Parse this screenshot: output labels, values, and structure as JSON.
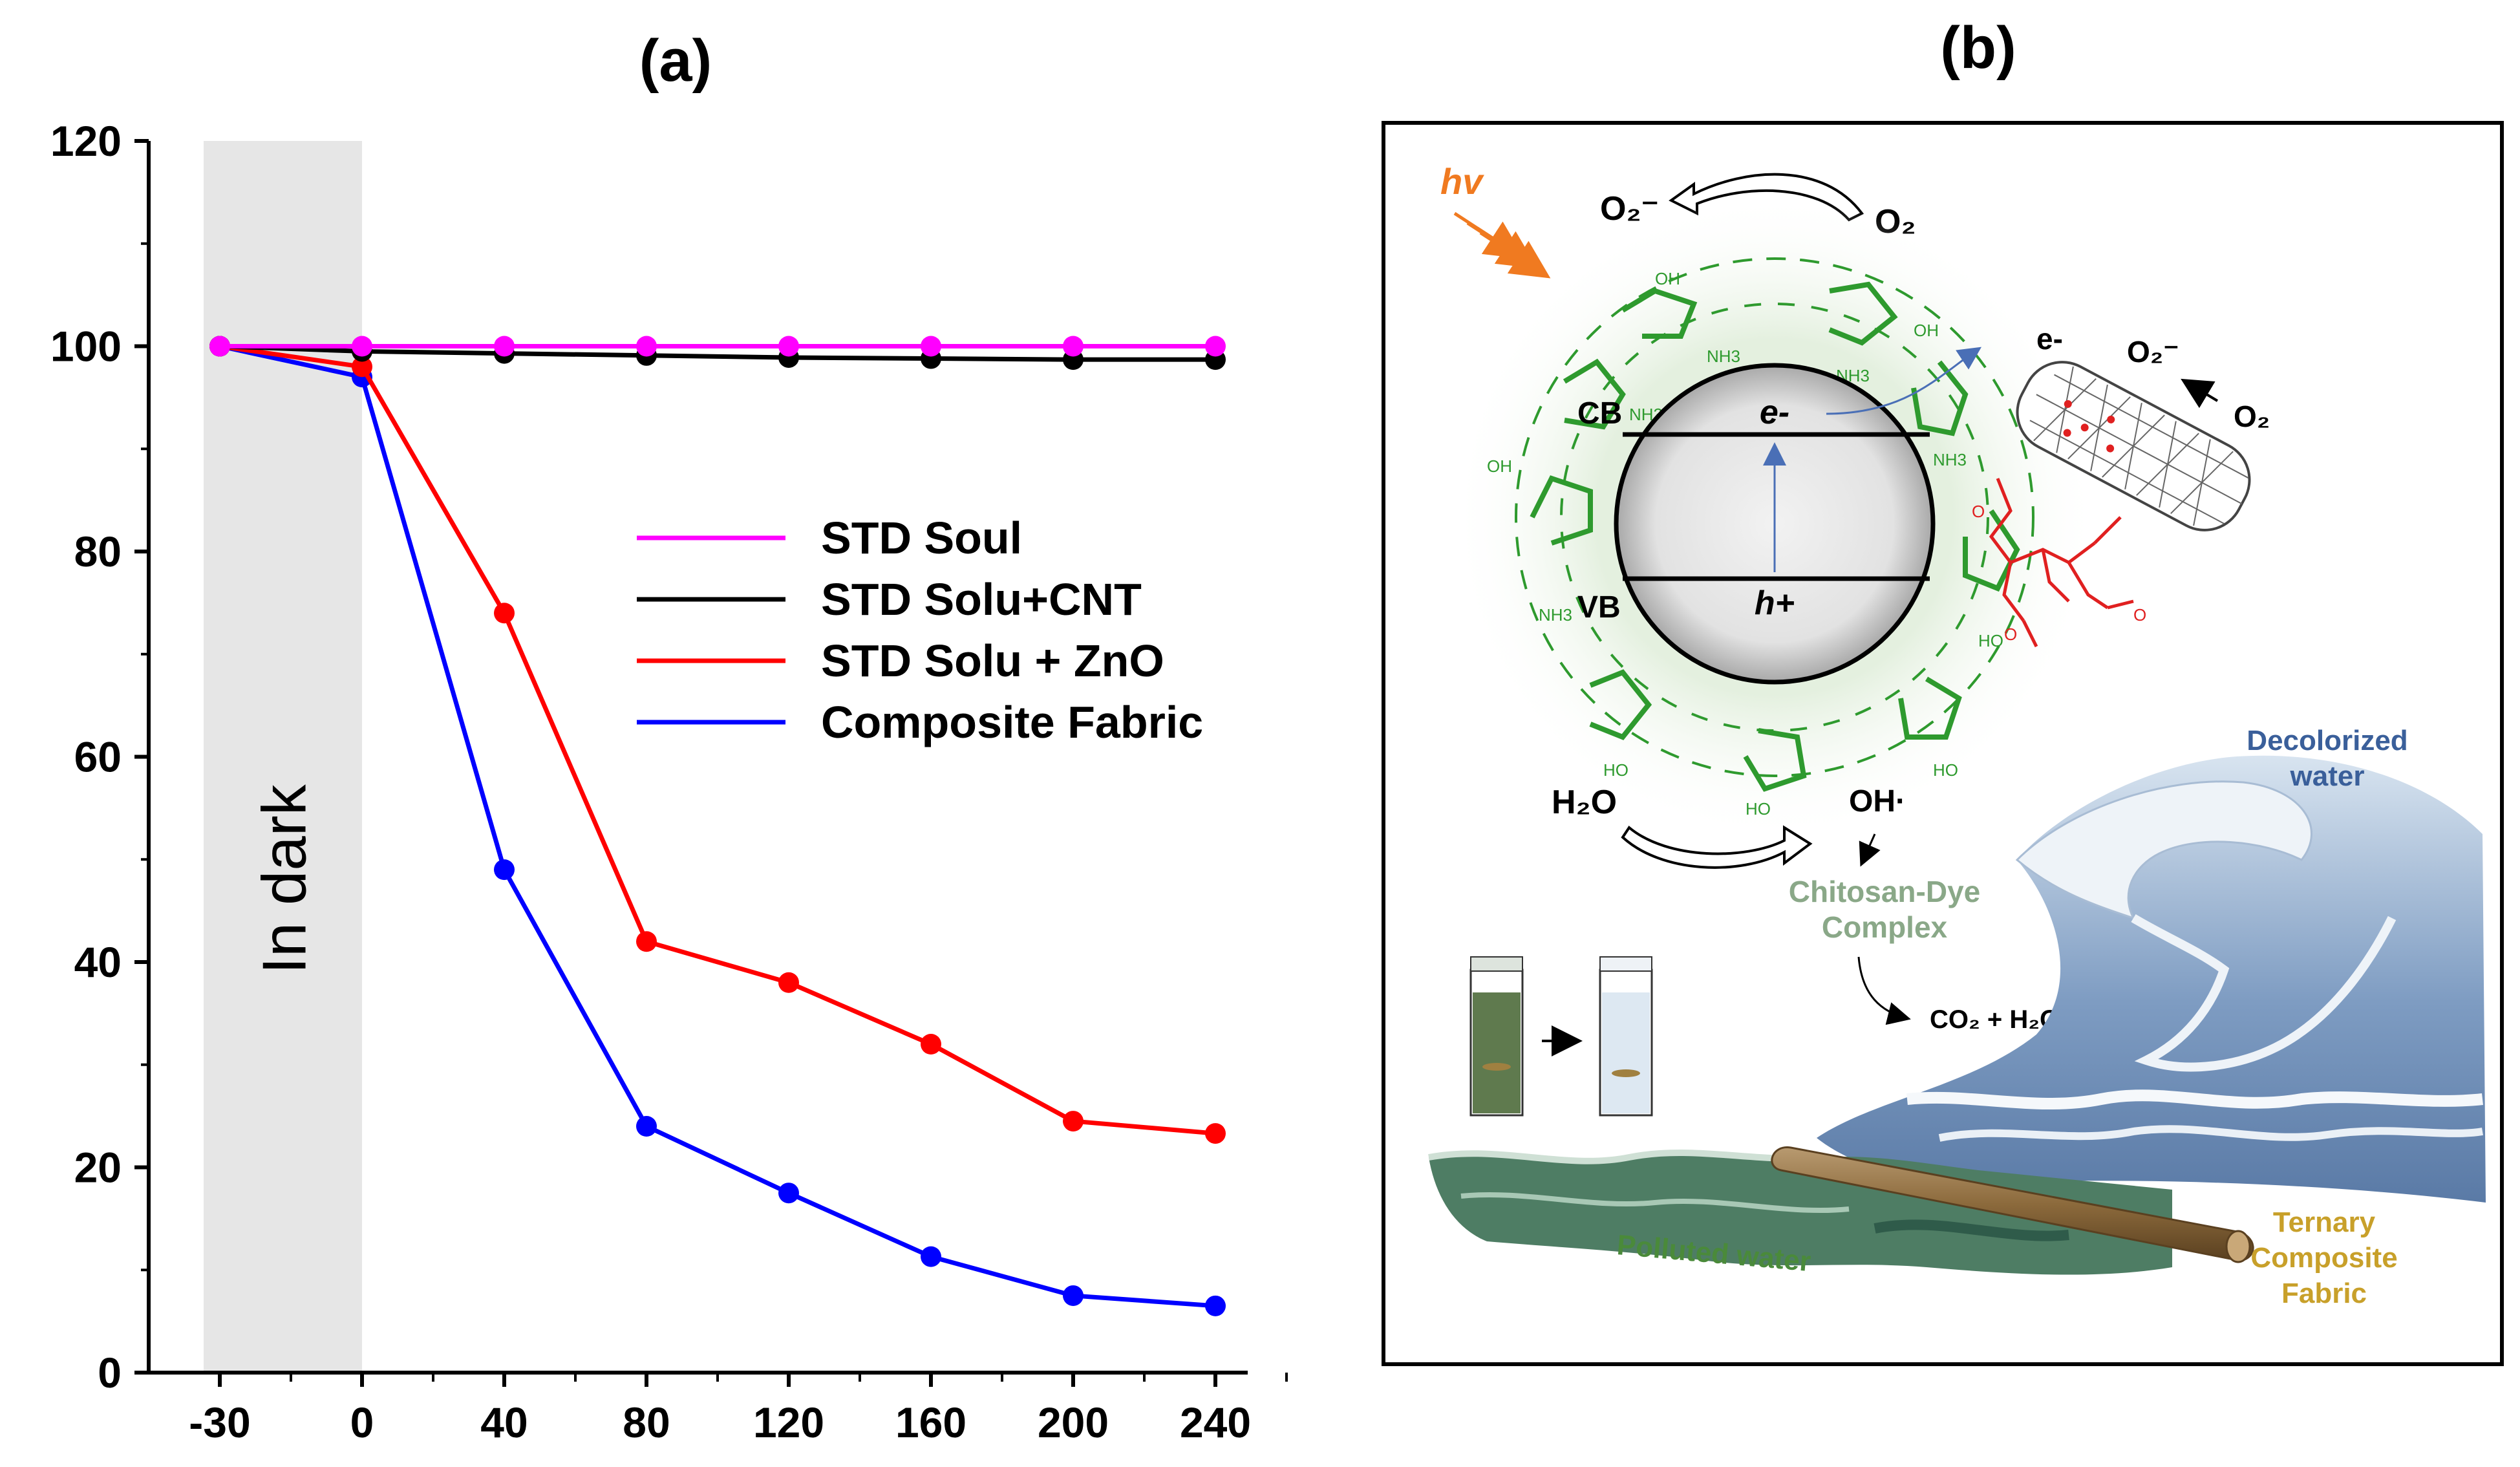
{
  "chart_data": {
    "type": "line",
    "panel_label": "(a)",
    "x_tick_labels": [
      "-30",
      "0",
      "40",
      "80",
      "120",
      "160",
      "200",
      "240"
    ],
    "y_tick_labels": [
      "0",
      "20",
      "40",
      "60",
      "80",
      "100",
      "120"
    ],
    "ylim": [
      0,
      120
    ],
    "shaded_region": {
      "from_index": 0,
      "to_index": 1,
      "label": "In dark",
      "color": "#e6e6e6"
    },
    "legend_position": "center-right",
    "series": [
      {
        "name": "STD Soul",
        "color": "#ff00ff",
        "values": [
          100,
          100,
          100,
          100,
          100,
          100,
          100,
          100
        ]
      },
      {
        "name": "STD Solu+CNT",
        "color": "#000000",
        "values": [
          100,
          99.5,
          99.3,
          99.1,
          98.9,
          98.8,
          98.7,
          98.7
        ]
      },
      {
        "name": "STD Solu + ZnO",
        "color": "#ff0000",
        "values": [
          100,
          98,
          74,
          42,
          38,
          32,
          24.5,
          23.3
        ]
      },
      {
        "name": "Composite Fabric",
        "color": "#0000ff",
        "values": [
          100,
          97,
          49,
          24,
          17.5,
          11.3,
          7.5,
          6.5
        ]
      }
    ]
  },
  "diagram": {
    "panel_label": "(b)",
    "labels": {
      "hv": "hv",
      "o2_radical_top": "O₂⁻",
      "o2_top": "O₂",
      "cb": "CB",
      "vb": "VB",
      "electron": "e-",
      "hole": "h+",
      "electron_cnt": "e-",
      "o2_radical_cnt": "O₂⁻",
      "o2_cnt": "O₂",
      "h2o": "H₂O",
      "oh_radical": "OH·",
      "chitosan_dye": "Chitosan-Dye",
      "complex": "Complex",
      "products": "CO₂ + H₂O",
      "decolorized_1": "Decolorized",
      "decolorized_2": "water",
      "polluted": "Polluted water",
      "ternary_1": "Ternary",
      "ternary_2": "Composite",
      "ternary_3": "Fabric"
    },
    "colors": {
      "chitosan_green": "#2e9a2e",
      "cnt_red": "#e02020",
      "arrow_orange": "#f07a20",
      "water_blue": "#6e8fb6",
      "water_dark_teal": "#2f5b4a",
      "decolorized_text": "#3a5f9a",
      "polluted_text": "#4a8a3a",
      "fabric_text": "#c8a02a",
      "complex_text": "#8aa888",
      "fabric_brown": "#7a5a30"
    }
  }
}
